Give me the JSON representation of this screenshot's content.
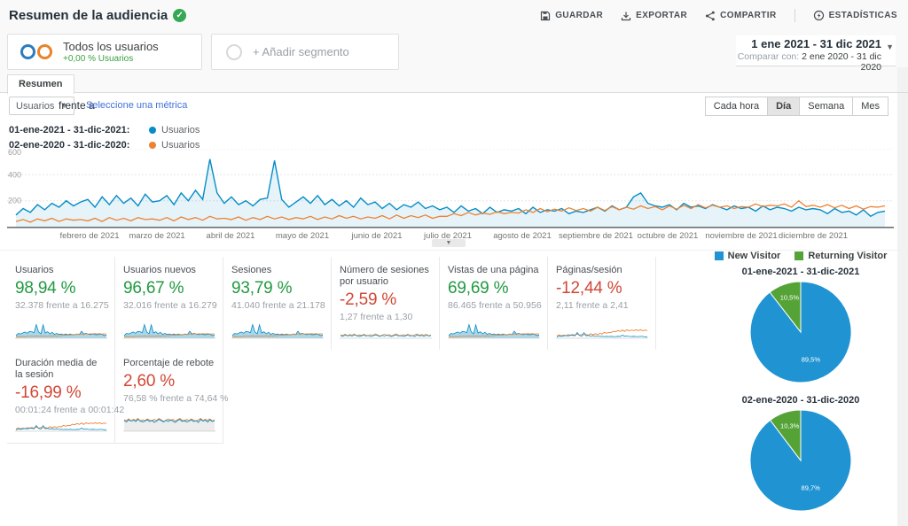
{
  "theme": {
    "blue": "#058dc7",
    "orange": "#ed8232",
    "green": "#229a41",
    "red": "#d14836",
    "link": "#4272db",
    "pie_blue": "#2094d2",
    "pie_green": "#55a337"
  },
  "header": {
    "title": "Resumen de la audiencia",
    "actions": [
      {
        "label": "GUARDAR",
        "icon": "save-icon"
      },
      {
        "label": "EXPORTAR",
        "icon": "export-icon"
      },
      {
        "label": "COMPARTIR",
        "icon": "share-icon"
      },
      {
        "label": "ESTADÍSTICAS",
        "icon": "insights-icon"
      }
    ]
  },
  "segments": {
    "all_users": {
      "title": "Todos los usuarios",
      "subtitle": "+0,00 % Usuarios"
    },
    "add": {
      "label": "+ Añadir segmento"
    }
  },
  "date_range": {
    "primary": "1 ene 2021 - 31 dic 2021",
    "compare_label": "Comparar con:",
    "compare": "2 ene 2020 - 31 dic 2020"
  },
  "tabs": [
    {
      "label": "Resumen",
      "active": true
    }
  ],
  "controls": {
    "metric_select": "Usuarios",
    "vs_label": "frente a",
    "select_metric_link": "Seleccione una métrica",
    "intervals": [
      {
        "label": "Cada hora",
        "active": false
      },
      {
        "label": "Día",
        "active": true
      },
      {
        "label": "Semana",
        "active": false
      },
      {
        "label": "Mes",
        "active": false
      }
    ]
  },
  "series_legend": [
    {
      "date": "01-ene-2021 - 31-dic-2021:",
      "metric": "Usuarios",
      "color": "#058dc7"
    },
    {
      "date": "02-ene-2020 - 31-dic-2020:",
      "metric": "Usuarios",
      "color": "#ed8232"
    }
  ],
  "chart_data": {
    "type": "line",
    "title": "Usuarios por día",
    "x_axis": {
      "unit": "día",
      "months": [
        "febrero de 2021",
        "marzo de 2021",
        "abril de 2021",
        "mayo de 2021",
        "junio de 2021",
        "julio de 2021",
        "agosto de 2021",
        "septiembre de 2021",
        "octubre de 2021",
        "noviembre de 2021",
        "diciembre de 2021"
      ]
    },
    "y_axis": {
      "ticks": [
        200,
        400,
        600
      ],
      "max": 600
    },
    "series": [
      {
        "name": "Usuarios 01-ene-2021 - 31-dic-2021",
        "color": "#058dc7",
        "values": [
          90,
          140,
          110,
          170,
          130,
          180,
          150,
          200,
          160,
          190,
          210,
          150,
          230,
          170,
          240,
          180,
          220,
          160,
          250,
          190,
          200,
          240,
          170,
          260,
          200,
          280,
          210,
          520,
          260,
          180,
          230,
          170,
          200,
          160,
          210,
          220,
          510,
          210,
          150,
          190,
          230,
          180,
          240,
          170,
          210,
          160,
          200,
          150,
          220,
          170,
          190,
          140,
          180,
          130,
          170,
          150,
          190,
          140,
          160,
          130,
          150,
          110,
          160,
          120,
          140,
          100,
          150,
          110,
          130,
          120,
          140,
          100,
          150,
          110,
          130,
          120,
          140,
          100,
          120,
          110,
          130,
          150,
          120,
          160,
          130,
          150,
          230,
          260,
          180,
          160,
          150,
          170,
          130,
          180,
          150,
          160,
          140,
          170,
          150,
          130,
          160,
          140,
          150,
          120,
          160,
          130,
          150,
          140,
          120,
          150,
          130,
          140,
          130,
          100,
          140,
          110,
          120,
          90,
          130,
          80,
          110,
          120
        ]
      },
      {
        "name": "Usuarios 02-ene-2020 - 31-dic-2020",
        "color": "#ed8232",
        "values": [
          40,
          55,
          35,
          60,
          45,
          65,
          40,
          60,
          50,
          55,
          45,
          65,
          40,
          70,
          50,
          65,
          45,
          70,
          55,
          60,
          50,
          70,
          45,
          75,
          55,
          70,
          50,
          80,
          60,
          65,
          55,
          75,
          50,
          70,
          55,
          80,
          60,
          75,
          55,
          70,
          60,
          80,
          55,
          75,
          60,
          85,
          65,
          80,
          60,
          75,
          65,
          85,
          60,
          90,
          65,
          85,
          70,
          90,
          65,
          80,
          80,
          100,
          85,
          110,
          90,
          105,
          95,
          115,
          100,
          110,
          105,
          130,
          110,
          140,
          115,
          135,
          120,
          145,
          125,
          140,
          120,
          150,
          125,
          155,
          130,
          150,
          135,
          160,
          140,
          155,
          130,
          160,
          135,
          165,
          140,
          170,
          145,
          165,
          150,
          160,
          140,
          155,
          150,
          175,
          155,
          165,
          160,
          175,
          150,
          200,
          155,
          165,
          150,
          170,
          145,
          165,
          140,
          160,
          135,
          155,
          150,
          160
        ]
      }
    ]
  },
  "cards": [
    {
      "title": "Usuarios",
      "value": "98,94 %",
      "value_color": "green",
      "comparison": "32.378 frente a 16.275",
      "spark": "peaks"
    },
    {
      "title": "Usuarios nuevos",
      "value": "96,67 %",
      "value_color": "green",
      "comparison": "32.016 frente a 16.279",
      "spark": "peaks"
    },
    {
      "title": "Sesiones",
      "value": "93,79 %",
      "value_color": "green",
      "comparison": "41.040 frente a 21.178",
      "spark": "peaks"
    },
    {
      "title": "Número de sesiones por usuario",
      "value": "-2,59 %",
      "value_color": "red",
      "comparison": "1,27 frente a 1,30",
      "spark": "flat"
    },
    {
      "title": "Vistas de una página",
      "value": "69,69 %",
      "value_color": "green",
      "comparison": "86.465 frente a 50.956",
      "spark": "peaks"
    },
    {
      "title": "Páginas/sesión",
      "value": "-12,44 %",
      "value_color": "red",
      "comparison": "2,11 frente a 2,41",
      "spark": "peaks-orange"
    },
    {
      "title": "Duración media de la sesión",
      "value": "-16,99 %",
      "value_color": "red",
      "comparison": "00:01:24 frente a 00:01:42",
      "spark": "peaks-orange"
    },
    {
      "title": "Porcentaje de rebote",
      "value": "2,60 %",
      "value_color": "red",
      "comparison": "76,58 % frente a 74,64 %",
      "spark": "band"
    }
  ],
  "sparkline_aux": {
    "bounce_band": [
      76,
      74,
      78,
      73,
      77,
      75,
      79,
      72,
      76,
      74,
      78,
      75,
      73,
      77,
      74,
      79,
      76,
      72,
      75,
      78,
      74,
      77,
      73,
      76,
      79,
      75,
      72,
      77,
      74,
      78,
      75,
      73,
      76,
      79,
      74,
      77,
      75,
      78,
      73,
      76
    ]
  },
  "pie_section": {
    "legend": [
      {
        "label": "New Visitor",
        "color": "#2094d2"
      },
      {
        "label": "Returning Visitor",
        "color": "#55a337"
      }
    ],
    "charts": [
      {
        "title": "01-ene-2021 - 31-dic-2021",
        "slices": [
          {
            "label": "New Visitor",
            "pct": 89.5,
            "text": "89,5%"
          },
          {
            "label": "Returning Visitor",
            "pct": 10.5,
            "text": "10,5%"
          }
        ]
      },
      {
        "title": "02-ene-2020 - 31-dic-2020",
        "slices": [
          {
            "label": "New Visitor",
            "pct": 89.7,
            "text": "89,7%"
          },
          {
            "label": "Returning Visitor",
            "pct": 10.3,
            "text": "10,3%"
          }
        ]
      }
    ]
  }
}
